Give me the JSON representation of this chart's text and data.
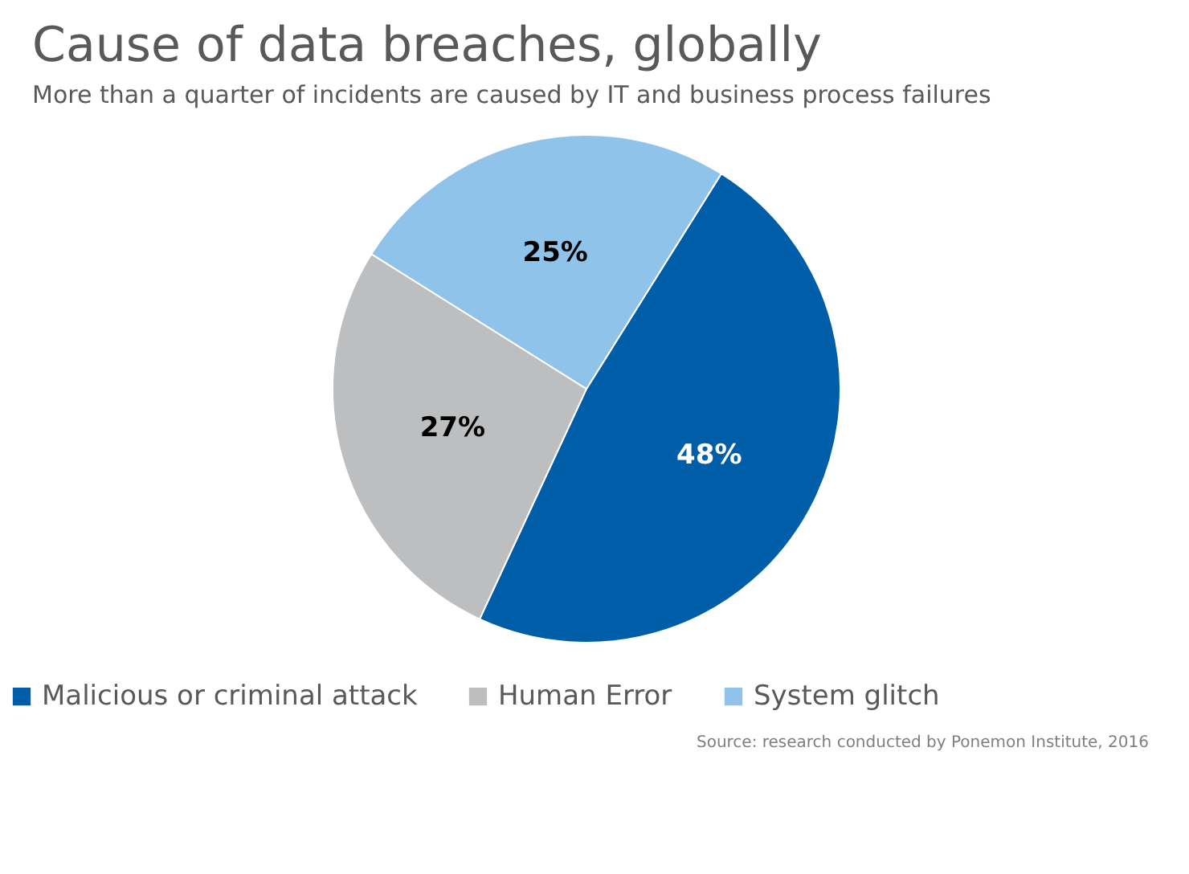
{
  "chart_data": {
    "type": "pie",
    "title": "Cause of data breaches, globally",
    "subtitle": "More than a quarter of incidents are caused by IT and business process failures",
    "categories": [
      "Malicious or criminal attack",
      "Human Error",
      "System glitch"
    ],
    "values": [
      48,
      27,
      25
    ],
    "colors": [
      "#005ea8",
      "#bcbec0",
      "#8fc3ea"
    ],
    "value_labels": [
      "48%",
      "27%",
      "25%"
    ],
    "legend": "bottom",
    "annotations": [
      "Source: research conducted by Ponemon Institute, 2016"
    ]
  }
}
